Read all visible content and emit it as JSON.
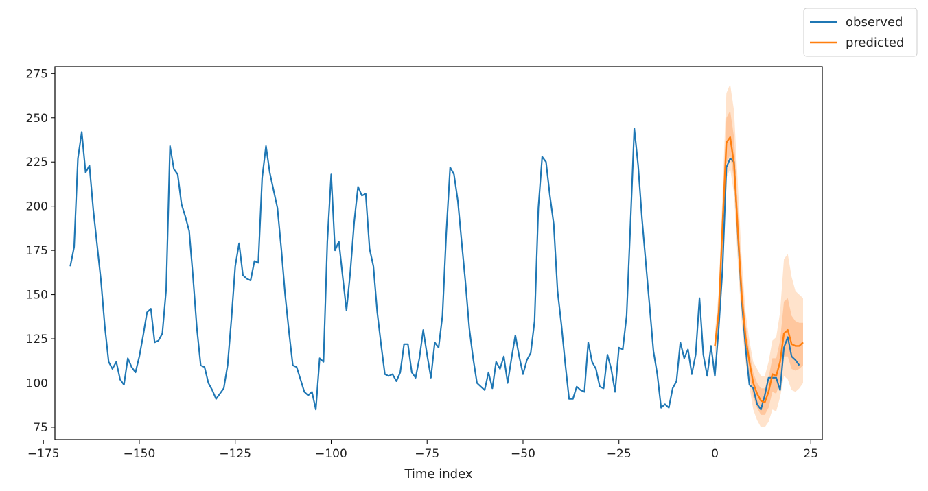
{
  "chart_data": {
    "type": "line",
    "title": "",
    "xlabel": "Time index",
    "ylabel": "",
    "xlim": [
      -172,
      28
    ],
    "ylim": [
      68,
      279
    ],
    "xticks": [
      -175,
      -150,
      -125,
      -100,
      -75,
      -50,
      -25,
      0,
      25
    ],
    "xtick_labels": [
      "−175",
      "−150",
      "−125",
      "−100",
      "−75",
      "−50",
      "−25",
      "0",
      "25"
    ],
    "yticks": [
      75,
      100,
      125,
      150,
      175,
      200,
      225,
      250,
      275
    ],
    "ytick_labels": [
      "75",
      "100",
      "125",
      "150",
      "175",
      "200",
      "225",
      "250",
      "275"
    ],
    "grid": false,
    "legend_position": "outside top-right",
    "colors": {
      "observed": "#1f77b4",
      "predicted": "#ff7f0e",
      "band_outer": "#ffe3cc",
      "band_inner": "#ffc79e"
    },
    "series": [
      {
        "name": "observed",
        "x_start": -168,
        "values": [
          166,
          177,
          227,
          242,
          219,
          223,
          198,
          178,
          158,
          132,
          112,
          108,
          112,
          102,
          99,
          114,
          109,
          106,
          115,
          127,
          140,
          142,
          123,
          124,
          128,
          153,
          234,
          221,
          218,
          201,
          194,
          186,
          160,
          131,
          110,
          109,
          100,
          96,
          91,
          94,
          97,
          110,
          136,
          166,
          179,
          161,
          159,
          158,
          169,
          168,
          216,
          234,
          219,
          209,
          199,
          176,
          150,
          129,
          110,
          109,
          102,
          95,
          93,
          95,
          85,
          114,
          112,
          180,
          218,
          175,
          180,
          160,
          141,
          163,
          191,
          211,
          206,
          207,
          176,
          166,
          140,
          122,
          105,
          104,
          105,
          101,
          106,
          122,
          122,
          106,
          103,
          114,
          130,
          116,
          103,
          123,
          120,
          138,
          185,
          222,
          218,
          203,
          180,
          157,
          131,
          114,
          100,
          98,
          96,
          106,
          97,
          112,
          108,
          115,
          100,
          114,
          127,
          115,
          105,
          113,
          117,
          135,
          199,
          228,
          225,
          206,
          190,
          152,
          133,
          111,
          91,
          91,
          98,
          96,
          95,
          123,
          112,
          108,
          98,
          97,
          116,
          108,
          95,
          120,
          119,
          138,
          190,
          244,
          223,
          193,
          168,
          143,
          118,
          105,
          86,
          88,
          86,
          97,
          101,
          123,
          114,
          119,
          105,
          116,
          148,
          116,
          104,
          121,
          104,
          131,
          165,
          222,
          227,
          225,
          184,
          147,
          120,
          99,
          97,
          88,
          85,
          93,
          103,
          103,
          103,
          96,
          120,
          126,
          115,
          113,
          110
        ]
      },
      {
        "name": "predicted",
        "x": [
          0,
          1,
          2,
          3,
          4,
          5,
          6,
          7,
          8,
          9,
          10,
          11,
          12,
          13,
          14,
          15,
          16,
          17,
          18,
          19,
          20,
          21,
          22,
          23
        ],
        "values": [
          121,
          140,
          190,
          236,
          239,
          224,
          186,
          150,
          126,
          112,
          100,
          94,
          90,
          89,
          95,
          105,
          104,
          112,
          128,
          130,
          122,
          121,
          121,
          123
        ],
        "band_outer_low": [
          114,
          130,
          175,
          216,
          221,
          207,
          168,
          134,
          112,
          98,
          85,
          79,
          75,
          75,
          78,
          85,
          84,
          92,
          104,
          102,
          96,
          95,
          97,
          100
        ],
        "band_outer_high": [
          128,
          152,
          208,
          264,
          269,
          254,
          212,
          170,
          140,
          124,
          112,
          108,
          104,
          104,
          112,
          124,
          126,
          140,
          170,
          173,
          160,
          152,
          150,
          148
        ],
        "band_inner_low": [
          117,
          135,
          182,
          224,
          229,
          215,
          176,
          141,
          118,
          104,
          92,
          86,
          82,
          82,
          86,
          95,
          94,
          101,
          115,
          115,
          108,
          107,
          108,
          110
        ],
        "band_inner_high": [
          125,
          146,
          200,
          250,
          254,
          239,
          199,
          161,
          134,
          118,
          106,
          100,
          97,
          97,
          103,
          114,
          114,
          124,
          146,
          148,
          138,
          135,
          134,
          134
        ]
      }
    ]
  }
}
